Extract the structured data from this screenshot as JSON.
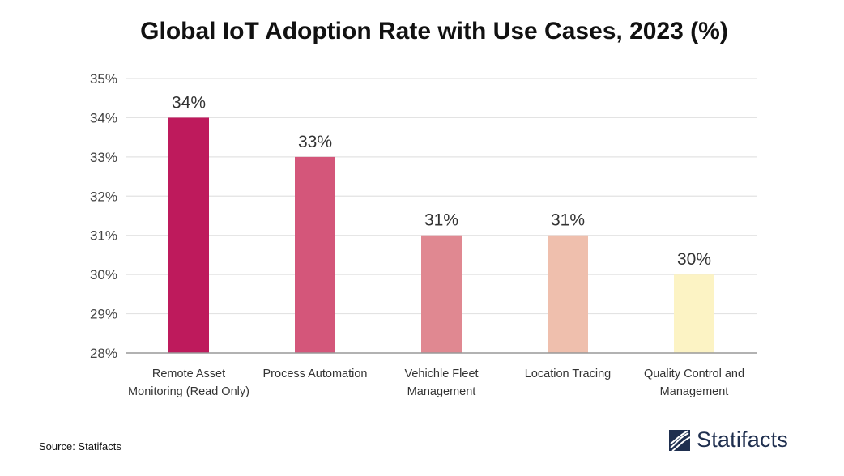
{
  "chart_data": {
    "type": "bar",
    "title": "Global IoT Adoption Rate with Use Cases, 2023 (%)",
    "categories": [
      [
        "Remote Asset",
        "Monitoring (Read Only)"
      ],
      [
        "Process Automation"
      ],
      [
        "Vehichle Fleet",
        "Management"
      ],
      [
        "Location Tracing"
      ],
      [
        "Quality Control and",
        "Management"
      ]
    ],
    "values": [
      34,
      33,
      31,
      31,
      30
    ],
    "data_labels": [
      "34%",
      "33%",
      "31%",
      "31%",
      "30%"
    ],
    "ylim": [
      28,
      35
    ],
    "yticks": [
      28,
      29,
      30,
      31,
      32,
      33,
      34,
      35
    ],
    "ytick_labels": [
      "28%",
      "29%",
      "30%",
      "31%",
      "32%",
      "33%",
      "34%",
      "35%"
    ],
    "xlabel": "",
    "ylabel": "",
    "grid": true,
    "bar_colors": [
      "#be1a5c",
      "#d4567a",
      "#e08891",
      "#efbfad",
      "#fcf3c4"
    ],
    "grid_color": "#e3e3e3",
    "axis_color": "#999999"
  },
  "footer": {
    "source": "Source: Statifacts",
    "brand": "Statifacts",
    "brand_icon": "statifacts-logo-icon"
  }
}
